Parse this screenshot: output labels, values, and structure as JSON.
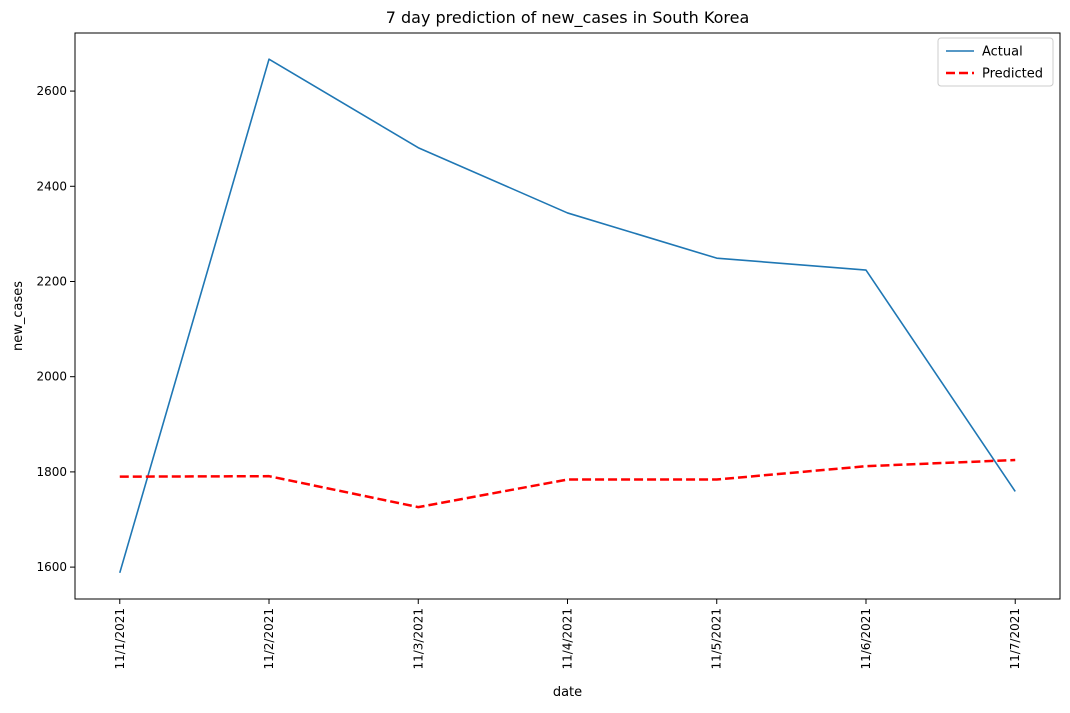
{
  "chart_data": {
    "type": "line",
    "title": "7 day prediction of new_cases in South Korea",
    "xlabel": "date",
    "ylabel": "new_cases",
    "categories": [
      "11/1/2021",
      "11/2/2021",
      "11/3/2021",
      "11/4/2021",
      "11/5/2021",
      "11/6/2021",
      "11/7/2021"
    ],
    "series": [
      {
        "name": "Actual",
        "values": [
          1588,
          2667,
          2481,
          2344,
          2249,
          2224,
          1759
        ],
        "color": "#1f77b4",
        "style": "solid"
      },
      {
        "name": "Predicted",
        "values": [
          1790,
          1791,
          1726,
          1784,
          1784,
          1812,
          1825
        ],
        "color": "#ff0000",
        "style": "dashed"
      }
    ],
    "ylim": [
      1533,
      2722
    ],
    "yticks": [
      "1600",
      "1800",
      "2000",
      "2200",
      "2400",
      "2600"
    ],
    "grid": false,
    "legend_position": "top-right"
  }
}
